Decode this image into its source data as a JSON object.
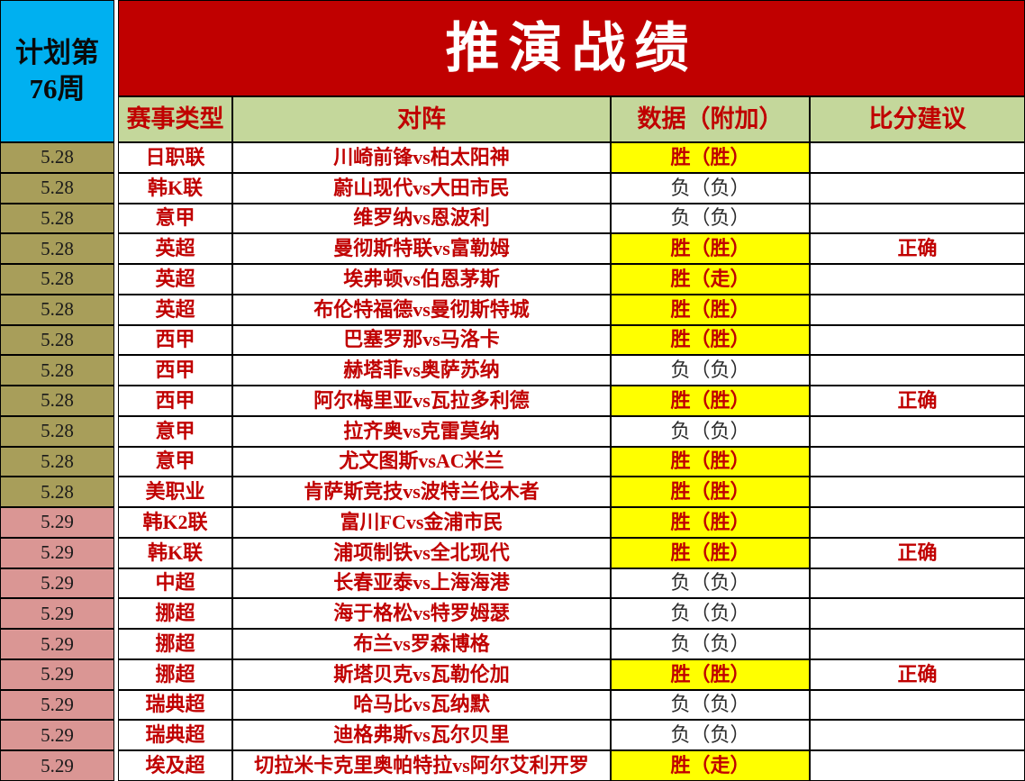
{
  "plan": {
    "line1": "计划第",
    "line2": "76周"
  },
  "title": "推演战绩",
  "columns": {
    "type": "赛事类型",
    "match": "对阵",
    "data": "数据（附加）",
    "suggestion": "比分建议"
  },
  "colors": {
    "banner_red": "#c00000",
    "plan_cyan": "#00b0f0",
    "header_green": "#c4d79b",
    "date_shades": {
      "5.28": "#a89e5a",
      "5.29": "#da9694"
    },
    "highlight_yellow": "#ffff00",
    "accent_text_red": "#c00000"
  },
  "rows": [
    {
      "date": "5.28",
      "league": "日职联",
      "match": "川崎前锋vs柏太阳神",
      "result": "胜（胜）",
      "highlight": true,
      "verdict": ""
    },
    {
      "date": "5.28",
      "league": "韩K联",
      "match": "蔚山现代vs大田市民",
      "result": "负（负）",
      "highlight": false,
      "verdict": ""
    },
    {
      "date": "5.28",
      "league": "意甲",
      "match": "维罗纳vs恩波利",
      "result": "负（负）",
      "highlight": false,
      "verdict": ""
    },
    {
      "date": "5.28",
      "league": "英超",
      "match": "曼彻斯特联vs富勒姆",
      "result": "胜（胜）",
      "highlight": true,
      "verdict": "正确"
    },
    {
      "date": "5.28",
      "league": "英超",
      "match": "埃弗顿vs伯恩茅斯",
      "result": "胜（走）",
      "highlight": true,
      "verdict": ""
    },
    {
      "date": "5.28",
      "league": "英超",
      "match": "布伦特福德vs曼彻斯特城",
      "result": "胜（胜）",
      "highlight": true,
      "verdict": ""
    },
    {
      "date": "5.28",
      "league": "西甲",
      "match": "巴塞罗那vs马洛卡",
      "result": "胜（胜）",
      "highlight": true,
      "verdict": ""
    },
    {
      "date": "5.28",
      "league": "西甲",
      "match": "赫塔菲vs奥萨苏纳",
      "result": "负（负）",
      "highlight": false,
      "verdict": ""
    },
    {
      "date": "5.28",
      "league": "西甲",
      "match": "阿尔梅里亚vs瓦拉多利德",
      "result": "胜（胜）",
      "highlight": true,
      "verdict": "正确"
    },
    {
      "date": "5.28",
      "league": "意甲",
      "match": "拉齐奥vs克雷莫纳",
      "result": "负（负）",
      "highlight": false,
      "verdict": ""
    },
    {
      "date": "5.28",
      "league": "意甲",
      "match": "尤文图斯vsAC米兰",
      "result": "胜（胜）",
      "highlight": true,
      "verdict": ""
    },
    {
      "date": "5.28",
      "league": "美职业",
      "match": "肯萨斯竞技vs波特兰伐木者",
      "result": "胜（胜）",
      "highlight": true,
      "verdict": ""
    },
    {
      "date": "5.29",
      "league": "韩K2联",
      "match": "富川FCvs金浦市民",
      "result": "胜（胜）",
      "highlight": true,
      "verdict": ""
    },
    {
      "date": "5.29",
      "league": "韩K联",
      "match": "浦项制铁vs全北现代",
      "result": "胜（胜）",
      "highlight": true,
      "verdict": "正确"
    },
    {
      "date": "5.29",
      "league": "中超",
      "match": "长春亚泰vs上海海港",
      "result": "负（负）",
      "highlight": false,
      "verdict": ""
    },
    {
      "date": "5.29",
      "league": "挪超",
      "match": "海于格松vs特罗姆瑟",
      "result": "负（负）",
      "highlight": false,
      "verdict": ""
    },
    {
      "date": "5.29",
      "league": "挪超",
      "match": "布兰vs罗森博格",
      "result": "负（负）",
      "highlight": false,
      "verdict": ""
    },
    {
      "date": "5.29",
      "league": "挪超",
      "match": "斯塔贝克vs瓦勒伦加",
      "result": "胜（胜）",
      "highlight": true,
      "verdict": "正确"
    },
    {
      "date": "5.29",
      "league": "瑞典超",
      "match": "哈马比vs瓦纳默",
      "result": "负（负）",
      "highlight": false,
      "verdict": ""
    },
    {
      "date": "5.29",
      "league": "瑞典超",
      "match": "迪格弗斯vs瓦尔贝里",
      "result": "负（负）",
      "highlight": false,
      "verdict": ""
    },
    {
      "date": "5.29",
      "league": "埃及超",
      "match": "切拉米卡克里奥帕特拉vs阿尔艾利开罗",
      "result": "胜（走）",
      "highlight": true,
      "verdict": ""
    }
  ]
}
